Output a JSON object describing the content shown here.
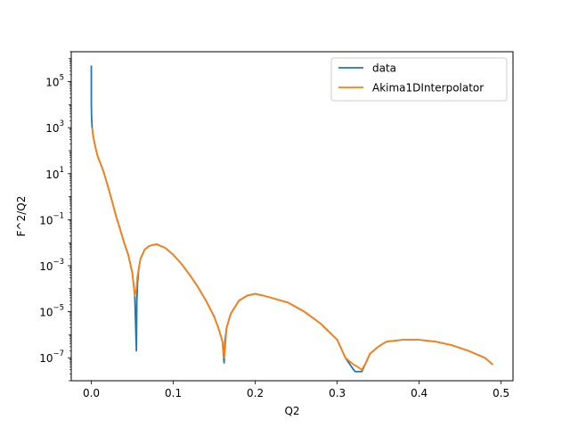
{
  "chart_data": {
    "type": "line",
    "title": "",
    "xlabel": "Q2",
    "ylabel": "F^2/Q2",
    "yscale": "log",
    "xlim": [
      -0.0245,
      0.5145
    ],
    "ylim": [
      1e-08,
      2000000.0
    ],
    "grid": false,
    "legend_position": "upper-right",
    "xticks": [
      0.0,
      0.1,
      0.2,
      0.3,
      0.4,
      0.5
    ],
    "xtick_labels": [
      "0.0",
      "0.1",
      "0.2",
      "0.3",
      "0.4",
      "0.5"
    ],
    "yticks": [
      1e-07,
      1e-05,
      0.001,
      0.1,
      10.0,
      1000.0,
      100000.0
    ],
    "ytick_labels": [
      {
        "base": "10",
        "exp": "−7"
      },
      {
        "base": "10",
        "exp": "−5"
      },
      {
        "base": "10",
        "exp": "−3"
      },
      {
        "base": "10",
        "exp": "−1"
      },
      {
        "base": "10",
        "exp": "1"
      },
      {
        "base": "10",
        "exp": "3"
      },
      {
        "base": "10",
        "exp": "5"
      }
    ],
    "series": [
      {
        "name": "data",
        "color": "#1f77b4",
        "x": [
          0.0,
          0.0,
          0.0003,
          0.001,
          0.002,
          0.004,
          0.007,
          0.01,
          0.015,
          0.02,
          0.025,
          0.03,
          0.035,
          0.04,
          0.045,
          0.05,
          0.053,
          0.055,
          0.0555,
          0.0565,
          0.058,
          0.06,
          0.065,
          0.07,
          0.075,
          0.08,
          0.09,
          0.1,
          0.11,
          0.12,
          0.13,
          0.14,
          0.15,
          0.155,
          0.16,
          0.162,
          0.1625,
          0.163,
          0.165,
          0.17,
          0.18,
          0.19,
          0.2,
          0.21,
          0.22,
          0.24,
          0.26,
          0.28,
          0.3,
          0.31,
          0.32,
          0.322,
          0.33,
          0.335,
          0.34,
          0.35,
          0.36,
          0.38,
          0.4,
          0.42,
          0.44,
          0.46,
          0.48,
          0.49
        ],
        "y": [
          500000,
          10000,
          3000,
          1000,
          500,
          200,
          70,
          35,
          12,
          3,
          0.7,
          0.15,
          0.04,
          0.01,
          0.003,
          0.0005,
          5e-05,
          2e-07,
          3e-05,
          0.0002,
          0.0008,
          0.002,
          0.005,
          0.007,
          0.008,
          0.0085,
          0.006,
          0.003,
          0.0012,
          0.0004,
          0.00012,
          3e-05,
          6e-06,
          2e-06,
          5e-07,
          6e-08,
          2e-07,
          5e-07,
          2e-06,
          8e-06,
          3e-05,
          5e-05,
          6e-05,
          5e-05,
          4e-05,
          2.5e-05,
          1e-05,
          3e-06,
          6e-07,
          1e-07,
          3e-08,
          2.5e-08,
          2.5e-08,
          6e-08,
          1.5e-07,
          3e-07,
          5e-07,
          6e-07,
          6e-07,
          5e-07,
          3.5e-07,
          2e-07,
          1e-07,
          5e-08
        ]
      },
      {
        "name": "Akima1DInterpolator",
        "color": "#ff7f0e",
        "x": [
          0.001,
          0.002,
          0.004,
          0.007,
          0.01,
          0.015,
          0.02,
          0.025,
          0.03,
          0.035,
          0.04,
          0.045,
          0.05,
          0.053,
          0.055,
          0.056,
          0.058,
          0.06,
          0.065,
          0.07,
          0.075,
          0.08,
          0.09,
          0.1,
          0.11,
          0.12,
          0.13,
          0.14,
          0.15,
          0.155,
          0.16,
          0.162,
          0.163,
          0.165,
          0.17,
          0.18,
          0.19,
          0.2,
          0.21,
          0.22,
          0.24,
          0.26,
          0.28,
          0.3,
          0.31,
          0.32,
          0.325,
          0.33,
          0.335,
          0.34,
          0.35,
          0.36,
          0.38,
          0.4,
          0.42,
          0.44,
          0.46,
          0.48,
          0.49
        ],
        "y": [
          1000,
          500,
          200,
          70,
          35,
          12,
          3,
          0.7,
          0.15,
          0.04,
          0.01,
          0.003,
          0.0005,
          5e-05,
          0.0001,
          0.0003,
          0.0008,
          0.002,
          0.005,
          0.007,
          0.008,
          0.0085,
          0.006,
          0.003,
          0.0012,
          0.0004,
          0.00012,
          3e-05,
          6e-06,
          2e-06,
          5e-07,
          1e-07,
          2e-07,
          2e-06,
          8e-06,
          3e-05,
          5e-05,
          6e-05,
          5e-05,
          4e-05,
          2.5e-05,
          1e-05,
          3e-06,
          6e-07,
          1e-07,
          5e-08,
          4e-08,
          3e-08,
          6e-08,
          1.5e-07,
          3e-07,
          5e-07,
          6e-07,
          6e-07,
          5e-07,
          3.5e-07,
          2e-07,
          1e-07,
          5e-08
        ]
      }
    ]
  }
}
